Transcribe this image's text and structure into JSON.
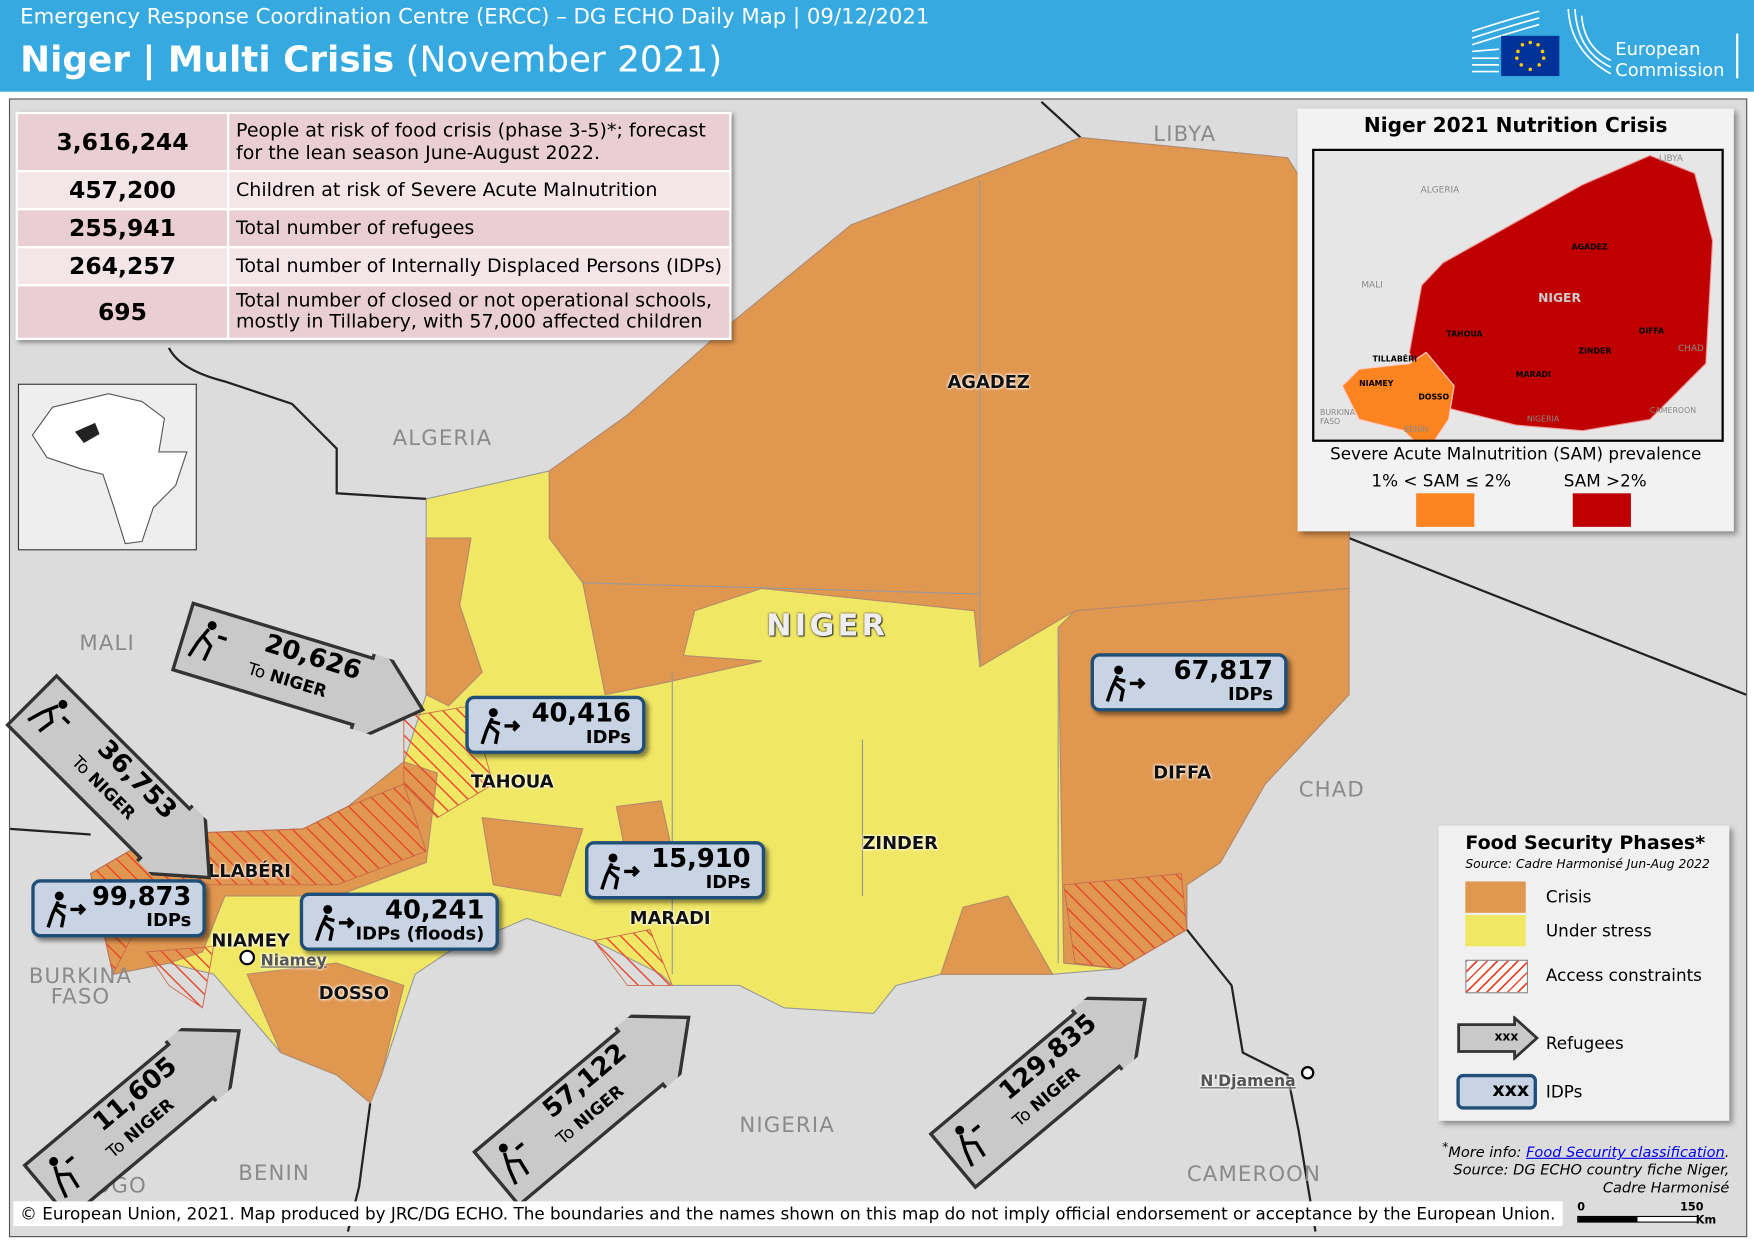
{
  "header": {
    "subtitle": "Emergency Response Coordination Centre (ERCC) – DG ECHO Daily Map | 09/12/2021",
    "title_bold": "Niger | Multi Crisis",
    "title_rest": " (November 2021)",
    "logo_line1": "European",
    "logo_line2": "Commission"
  },
  "stats": [
    {
      "value": "3,616,244",
      "label": "People at risk of food crisis (phase 3-5)*; forecast for the lean season June-August 2022."
    },
    {
      "value": "457,200",
      "label": "Children at risk of Severe Acute Malnutrition"
    },
    {
      "value": "255,941",
      "label": "Total number of refugees"
    },
    {
      "value": "264,257",
      "label": "Total number of Internally Displaced Persons (IDPs)"
    },
    {
      "value": "695",
      "label": "Total number of closed or not operational schools, mostly in Tillabery, with 57,000 affected children"
    }
  ],
  "countries": {
    "libya": "LIBYA",
    "algeria": "ALGERIA",
    "mali": "MALI",
    "chad": "CHAD",
    "burkina": "BURKINA FASO",
    "nigeria": "NIGERIA",
    "benin": "BENIN",
    "togo": "TOGO",
    "cameroon": "CAMEROON",
    "niger": "NIGER"
  },
  "regions": {
    "agadez": "AGADEZ",
    "tahoua": "TAHOUA",
    "tillaberi": "TILLABÉRI",
    "niamey": "NIAMEY",
    "dosso": "DOSSO",
    "maradi": "MARADI",
    "zinder": "ZINDER",
    "diffa": "DIFFA"
  },
  "cities": {
    "niamey": "Niamey",
    "ndjamena": "N'Djamena"
  },
  "idps": [
    {
      "value": "67,817",
      "label": "IDPs"
    },
    {
      "value": "40,416",
      "label": "IDPs"
    },
    {
      "value": "15,910",
      "label": "IDPs"
    },
    {
      "value": "99,873",
      "label": "IDPs"
    },
    {
      "value": "40,241",
      "label": "IDPs (floods)"
    }
  ],
  "refugees": [
    {
      "value": "20,626",
      "to": "To",
      "dest": "NIGER"
    },
    {
      "value": "36,753",
      "to": "To",
      "dest": "NIGER"
    },
    {
      "value": "11,605",
      "to": "To",
      "dest": "NIGER"
    },
    {
      "value": "57,122",
      "to": "To",
      "dest": "NIGER"
    },
    {
      "value": "129,835",
      "to": "To",
      "dest": "NIGER"
    }
  ],
  "inset": {
    "title": "Niger 2021 Nutrition Crisis",
    "caption": "Severe Acute Malnutrition (SAM) prevalence",
    "legend": [
      {
        "label": "1% < SAM ≤ 2%",
        "color": "#fb8320"
      },
      {
        "label": "SAM >2%",
        "color": "#c00000"
      }
    ],
    "labels": {
      "libya": "LIBYA",
      "algeria": "ALGERIA",
      "mali": "MALI",
      "niger": "NIGER",
      "agadez": "AGADEZ",
      "tahoua": "TAHOUA",
      "tillaberi": "TILLABÉRI",
      "niamey": "NIAMEY",
      "dosso": "DOSSO",
      "maradi": "MARADI",
      "zinder": "ZINDER",
      "diffa": "DIFFA",
      "chad": "CHAD",
      "burkina": "BURKINA FASO",
      "benin": "BENIN",
      "nigeria": "NIGERIA",
      "cameroon": "CAMEROON"
    }
  },
  "legend": {
    "title": "Food Security Phases*",
    "source": "Source:  Cadre  Harmonisé Jun-Aug  2022",
    "items": [
      {
        "label": "Crisis",
        "color": "#e0974f"
      },
      {
        "label": "Under stress",
        "color": "#f0e764"
      },
      {
        "label": "Access constraints",
        "color": "#e8452c"
      },
      {
        "label": "Refugees"
      },
      {
        "label": "IDPs"
      }
    ],
    "symbol_text": "xxx"
  },
  "note": {
    "prefix": "More info: ",
    "link": "Food Security classification",
    "line2": "Source: DG ECHO country fiche Niger,",
    "line3": "Cadre Harmonisé"
  },
  "footer": "© European Union, 2021. Map produced by JRC/DG ECHO. The boundaries and the names shown on this map do not imply official endorsement or acceptance by the European Union.",
  "scale": {
    "min": "0",
    "max": "150",
    "unit": "Km"
  }
}
